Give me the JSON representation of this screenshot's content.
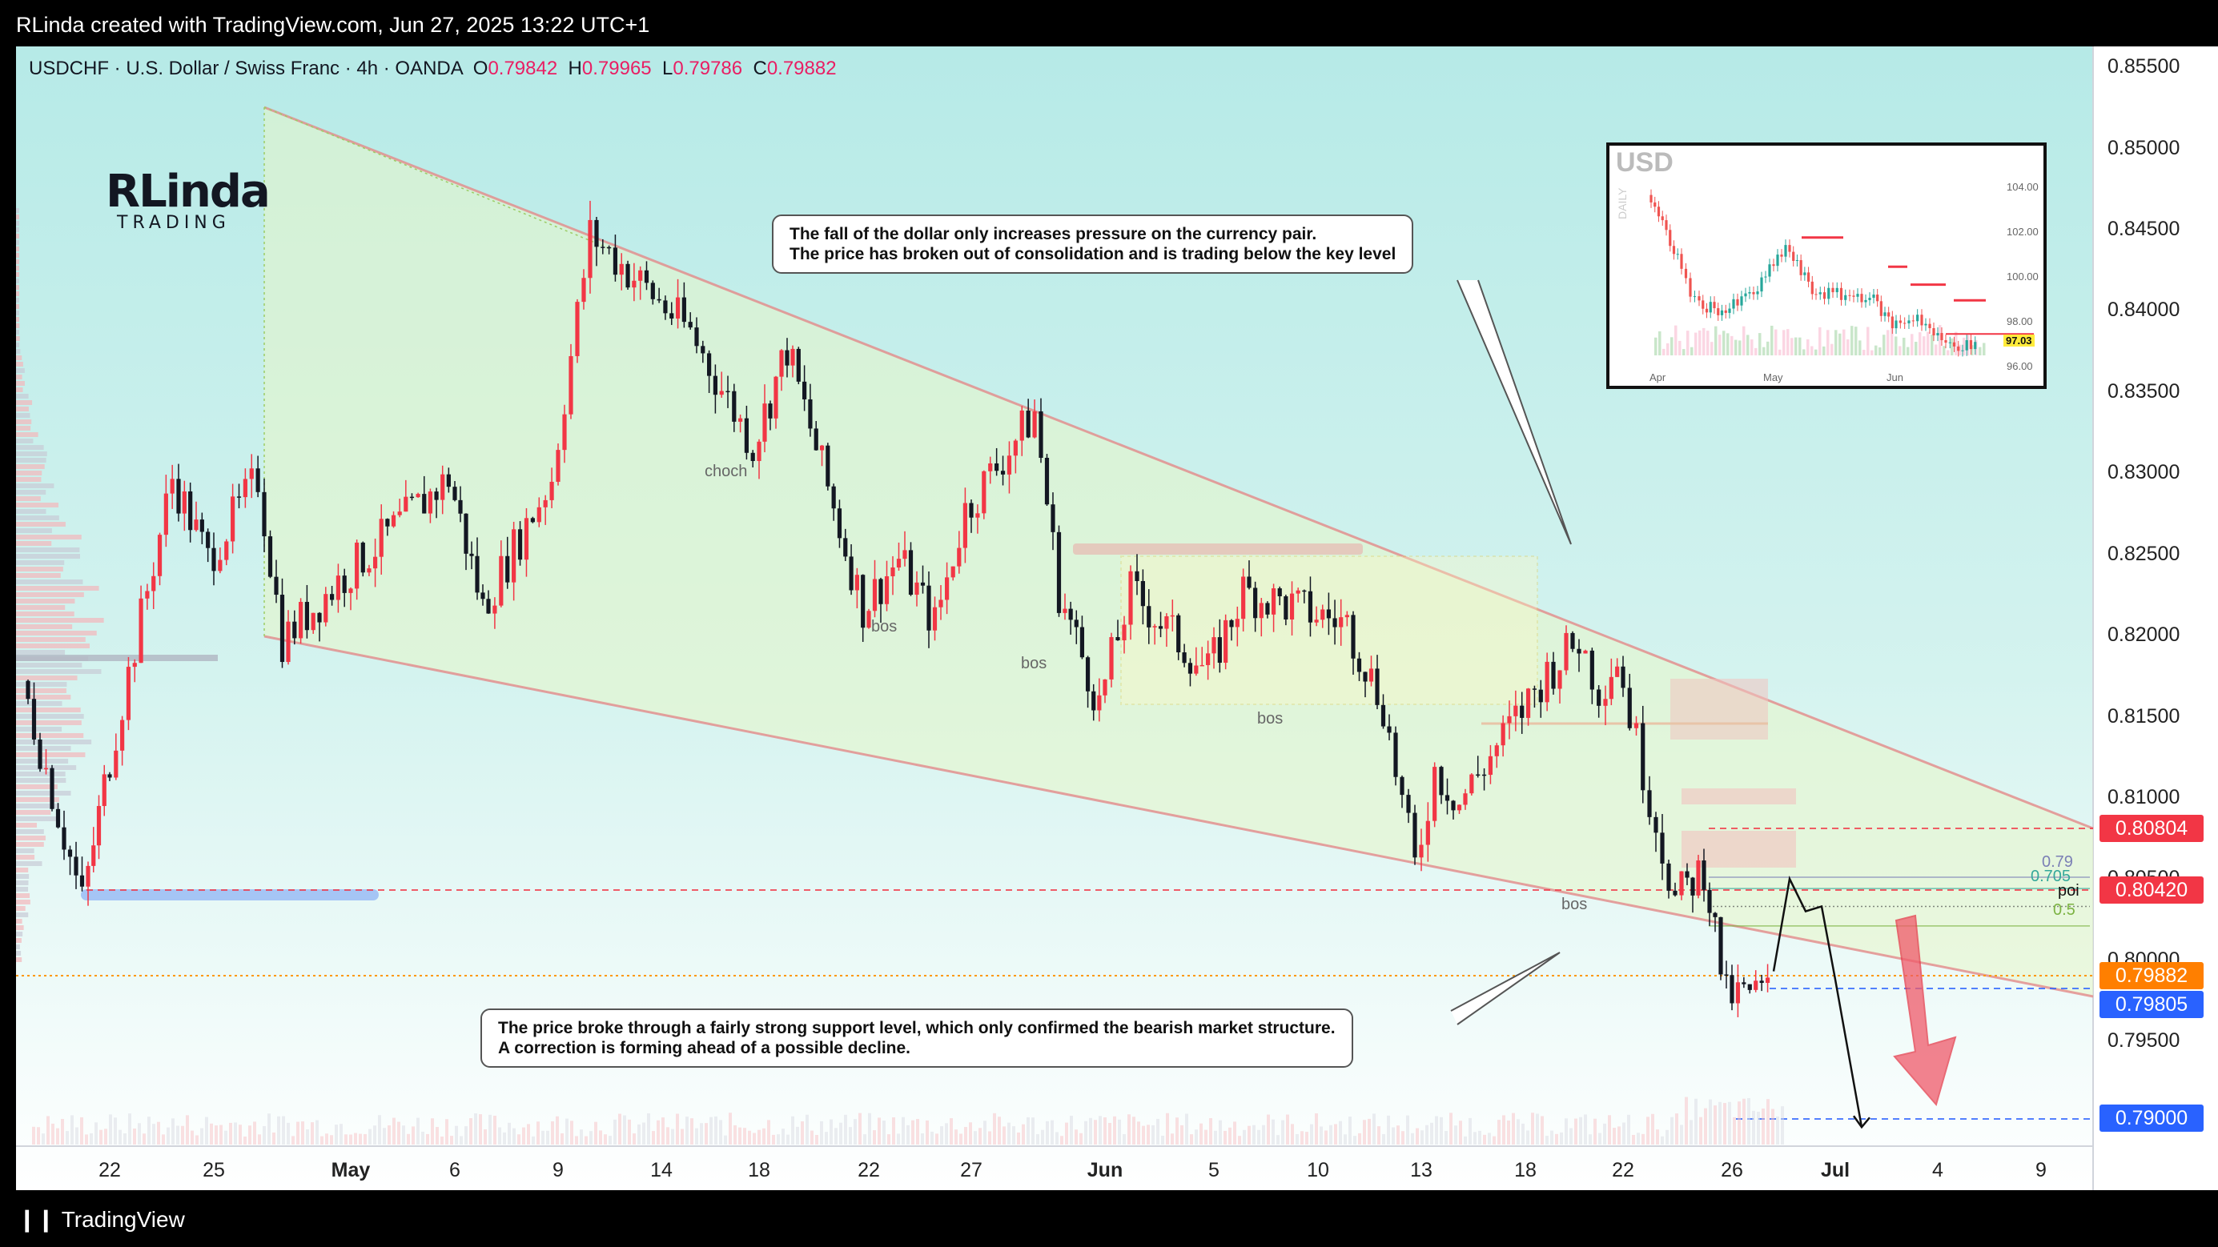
{
  "header": {
    "credit": "RLinda created with TradingView.com, Jun 27, 2025 13:22 UTC+1"
  },
  "footer": {
    "brand": "TradingView"
  },
  "logo": {
    "line1": "RLinda",
    "line2": "TRADING"
  },
  "colors": {
    "bg_top": "#b6eae7",
    "bg_bottom": "#ffffff",
    "up": "#f23645",
    "down": "#131722",
    "wedge": "#e38a8a",
    "bear_arrow": "#f05a6a"
  },
  "chart_data": {
    "type": "candlestick",
    "legend": {
      "symbol": "USDCHF · U.S. Dollar / Swiss Franc · 4h · OANDA",
      "open_label": "O",
      "open": "0.79842",
      "high_label": "H",
      "high": "0.79965",
      "low_label": "L",
      "low": "0.79786",
      "close_label": "C",
      "close": "0.79882"
    },
    "y_axis": {
      "min": 0.7875,
      "max": 0.8575,
      "ticks": [
        "0.85500",
        "0.85000",
        "0.84500",
        "0.84000",
        "0.83500",
        "0.83000",
        "0.82500",
        "0.82000",
        "0.81500",
        "0.81000",
        "0.80500",
        "0.80000",
        "0.79500"
      ]
    },
    "x_axis": {
      "ticks": [
        {
          "label": "22",
          "bold": false
        },
        {
          "label": "25",
          "bold": false
        },
        {
          "label": "May",
          "bold": true
        },
        {
          "label": "6",
          "bold": false
        },
        {
          "label": "9",
          "bold": false
        },
        {
          "label": "14",
          "bold": false
        },
        {
          "label": "18",
          "bold": false
        },
        {
          "label": "22",
          "bold": false
        },
        {
          "label": "27",
          "bold": false
        },
        {
          "label": "Jun",
          "bold": true
        },
        {
          "label": "5",
          "bold": false
        },
        {
          "label": "10",
          "bold": false
        },
        {
          "label": "13",
          "bold": false
        },
        {
          "label": "18",
          "bold": false
        },
        {
          "label": "22",
          "bold": false
        },
        {
          "label": "26",
          "bold": false
        },
        {
          "label": "Jul",
          "bold": true
        },
        {
          "label": "4",
          "bold": false
        },
        {
          "label": "9",
          "bold": false
        }
      ]
    },
    "price_labels": [
      {
        "value": "0.80804",
        "color": "#f23645"
      },
      {
        "value": "0.80420",
        "color": "#f23645"
      },
      {
        "value": "0.79882",
        "color": "#ff7f00"
      },
      {
        "value": "0.79805",
        "color": "#2962ff"
      },
      {
        "value": "0.79000",
        "color": "#2962ff"
      }
    ],
    "path_anchors": [
      {
        "date": "Apr 17",
        "price": 0.818
      },
      {
        "date": "Apr 21",
        "price": 0.8044
      },
      {
        "date": "Apr 22",
        "price": 0.8115
      },
      {
        "date": "Apr 24",
        "price": 0.8305
      },
      {
        "date": "Apr 25",
        "price": 0.8255
      },
      {
        "date": "Apr 28",
        "price": 0.8305
      },
      {
        "date": "Apr 29",
        "price": 0.8205
      },
      {
        "date": "May 1",
        "price": 0.8245
      },
      {
        "date": "May 5",
        "price": 0.8305
      },
      {
        "date": "May 7",
        "price": 0.8225
      },
      {
        "date": "May 9",
        "price": 0.8305
      },
      {
        "date": "May 12",
        "price": 0.8455
      },
      {
        "date": "May 15",
        "price": 0.8395
      },
      {
        "date": "May 19",
        "price": 0.8325
      },
      {
        "date": "May 20",
        "price": 0.8385
      },
      {
        "date": "May 22",
        "price": 0.8225
      },
      {
        "date": "May 23",
        "price": 0.8255
      },
      {
        "date": "May 25",
        "price": 0.8215
      },
      {
        "date": "May 27",
        "price": 0.8285
      },
      {
        "date": "May 29",
        "price": 0.8345
      },
      {
        "date": "May 30",
        "price": 0.8235
      },
      {
        "date": "Jun 2",
        "price": 0.8165
      },
      {
        "date": "Jun 3",
        "price": 0.8235
      },
      {
        "date": "Jun 5",
        "price": 0.8185
      },
      {
        "date": "Jun 6",
        "price": 0.8235
      },
      {
        "date": "Jun 11",
        "price": 0.8215
      },
      {
        "date": "Jun 12",
        "price": 0.8165
      },
      {
        "date": "Jun 13",
        "price": 0.8065
      },
      {
        "date": "Jun 14",
        "price": 0.8125
      },
      {
        "date": "Jun 16",
        "price": 0.8105
      },
      {
        "date": "Jun 19",
        "price": 0.8185
      },
      {
        "date": "Jun 20",
        "price": 0.8205
      },
      {
        "date": "Jun 21",
        "price": 0.8175
      },
      {
        "date": "Jun 22",
        "price": 0.8195
      },
      {
        "date": "Jun 23",
        "price": 0.8125
      },
      {
        "date": "Jun 24",
        "price": 0.8045
      },
      {
        "date": "Jun 25",
        "price": 0.8065
      },
      {
        "date": "Jun 26",
        "price": 0.7985
      },
      {
        "date": "Jun 27",
        "price": 0.7988
      }
    ],
    "annotations": {
      "choch": "choch",
      "bos1": "bos",
      "bos2": "bos",
      "bos3": "bos",
      "bos4": "bos",
      "fib": [
        {
          "label": "0.79",
          "price": 0.8059
        },
        {
          "label": "0.705",
          "price": 0.8052
        },
        {
          "label": "poi",
          "price": 0.8041
        },
        {
          "label": "0.5",
          "price": 0.8029
        }
      ],
      "projection": [
        {
          "date": "Jun 27",
          "price": 0.8001
        },
        {
          "date": "Jun 28",
          "price": 0.8058
        },
        {
          "date": "Jun 29",
          "price": 0.8038
        },
        {
          "date": "Jun 30",
          "price": 0.8041
        },
        {
          "date": "Jul 1",
          "price": 0.7996
        },
        {
          "date": "Jul 2",
          "price": 0.7905
        }
      ]
    }
  },
  "callouts": {
    "top": {
      "line1": "The fall of the dollar only increases pressure on the currency pair.",
      "line2": "The price has broken out of consolidation and is trading below the key level"
    },
    "bottom": {
      "line1": "The price broke through a fairly strong support level, which only confirmed the bearish market structure.",
      "line2": "A correction is forming ahead of a possible decline."
    }
  },
  "inset": {
    "title": "USD",
    "timeframe": "DAILY",
    "ticks": [
      "104.00",
      "102.00",
      "100.00",
      "98.00",
      "96.00"
    ],
    "x_labels": [
      "Apr",
      "May",
      "Jun"
    ],
    "last_price": "97.03"
  }
}
